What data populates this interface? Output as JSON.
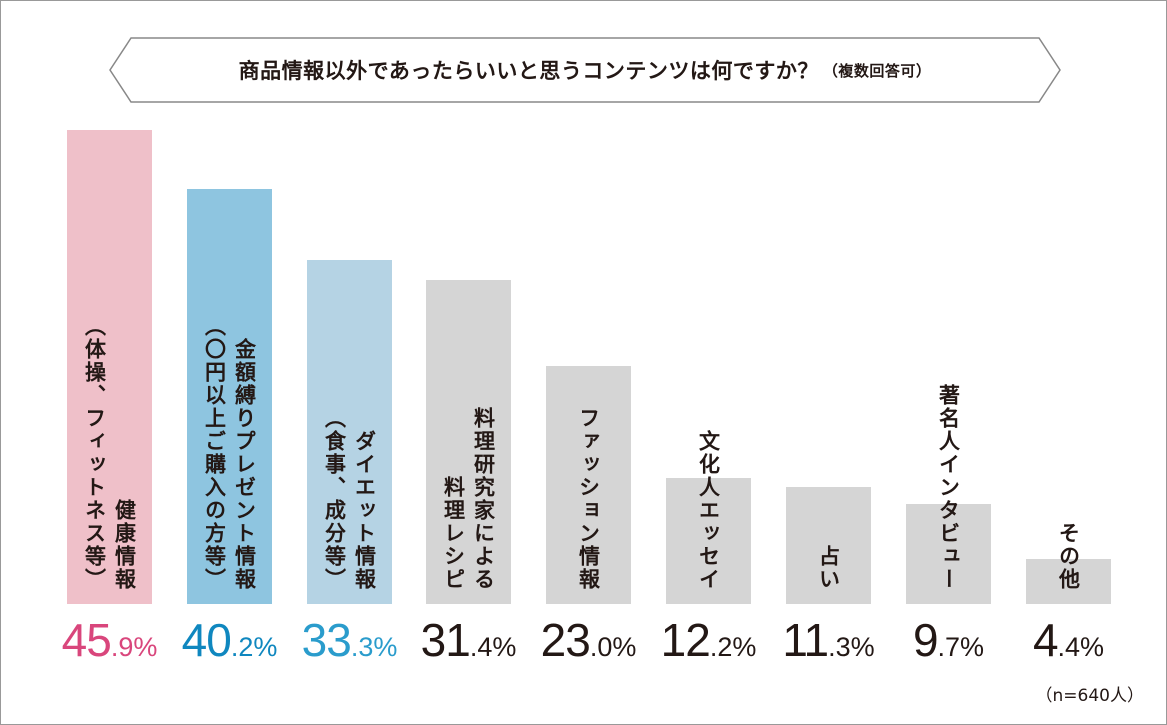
{
  "chart_data": {
    "type": "bar",
    "title": "商品情報以外であったらいいと思うコンテンツは何ですか？",
    "subtitle": "（複数回答可）",
    "categories": [
      {
        "label": "健康情報\n（体操、フィットネス等）",
        "value": 45.9,
        "bar_color": "#efc0c9",
        "text_color": "#d9467c"
      },
      {
        "label": "金額縛りプレゼント情報\n（〇円以上ご購入の方等）",
        "value": 40.2,
        "bar_color": "#8ec5e0",
        "text_color": "#0f87bf"
      },
      {
        "label": "ダイエット情報\n（食事、成分等）",
        "value": 33.3,
        "bar_color": "#b5d3e4",
        "text_color": "#2a9ccc"
      },
      {
        "label": "料理研究家による\n料理レシピ",
        "value": 31.4,
        "bar_color": "#d5d5d5",
        "text_color": "#231815"
      },
      {
        "label": "ファッション情報",
        "value": 23.0,
        "bar_color": "#d5d5d5",
        "text_color": "#231815"
      },
      {
        "label": "文化人エッセイ",
        "value": 12.2,
        "bar_color": "#d5d5d5",
        "text_color": "#231815"
      },
      {
        "label": "占い",
        "value": 11.3,
        "bar_color": "#d5d5d5",
        "text_color": "#231815"
      },
      {
        "label": "著名人インタビュー",
        "value": 9.7,
        "bar_color": "#d5d5d5",
        "text_color": "#231815"
      },
      {
        "label": "その他",
        "value": 4.4,
        "bar_color": "#d5d5d5",
        "text_color": "#231815"
      }
    ],
    "unit": "%",
    "ylim": [
      0,
      50
    ],
    "grid": false,
    "note": "（n=640人）"
  }
}
